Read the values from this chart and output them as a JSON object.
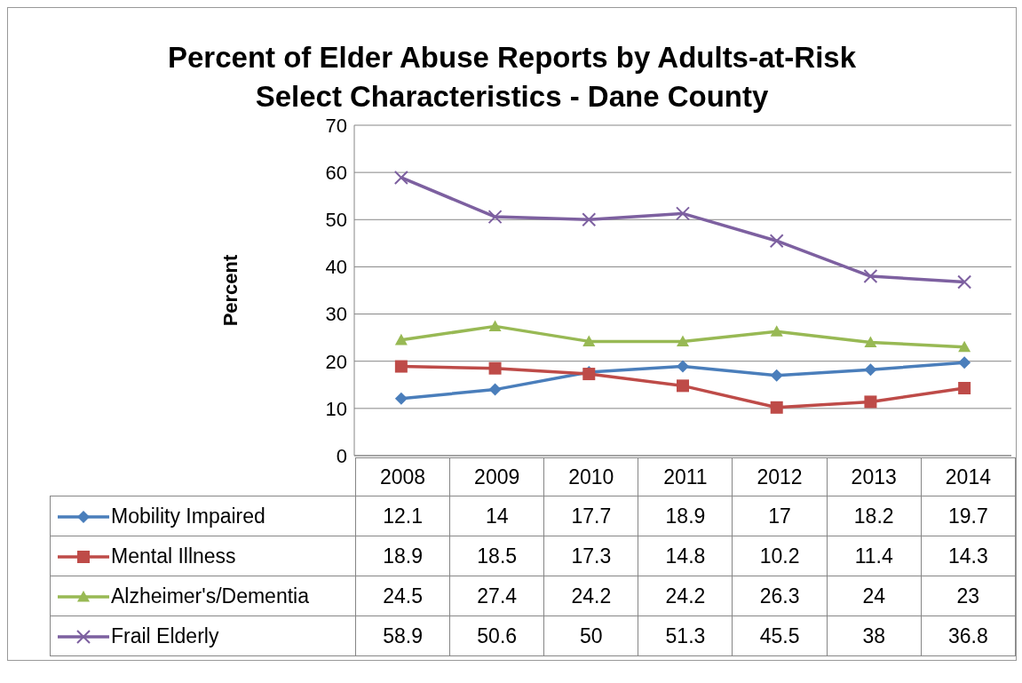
{
  "chart_data": {
    "type": "line",
    "title": "Percent of Elder Abuse Reports by Adults-at-Risk\nSelect Characteristics - Dane County",
    "ylabel": "Percent",
    "categories": [
      "2008",
      "2009",
      "2010",
      "2011",
      "2012",
      "2013",
      "2014"
    ],
    "series": [
      {
        "name": "Mobility Impaired",
        "color": "#4a7ebb",
        "marker": "diamond",
        "values": [
          12.1,
          14,
          17.7,
          18.9,
          17,
          18.2,
          19.7
        ]
      },
      {
        "name": "Mental Illness",
        "color": "#be4b48",
        "marker": "square",
        "values": [
          18.9,
          18.5,
          17.3,
          14.8,
          10.2,
          11.4,
          14.3
        ]
      },
      {
        "name": "Alzheimer's/Dementia",
        "color": "#98b954",
        "marker": "triangle",
        "values": [
          24.5,
          27.4,
          24.2,
          24.2,
          26.3,
          24,
          23
        ]
      },
      {
        "name": "Frail Elderly",
        "color": "#7d60a0",
        "marker": "cross",
        "values": [
          58.9,
          50.6,
          50,
          51.3,
          45.5,
          38,
          36.8
        ]
      }
    ],
    "ylim": [
      0,
      70
    ],
    "yticks": [
      0,
      10,
      20,
      30,
      40,
      50,
      60,
      70
    ],
    "grid": "y",
    "legend": "bottom",
    "data_labels": true,
    "line_style": "solid"
  }
}
